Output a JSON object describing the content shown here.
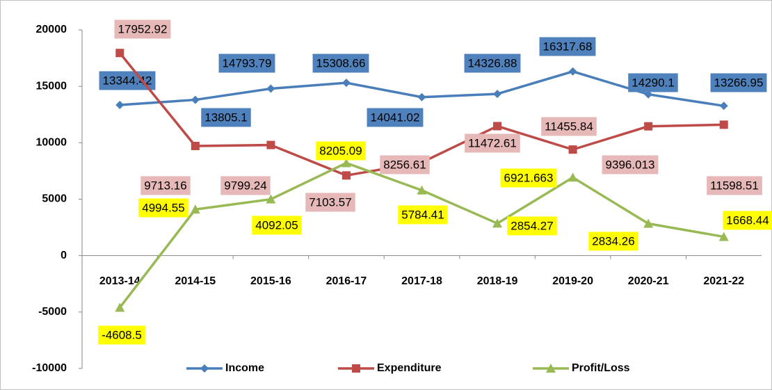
{
  "chart_data": {
    "type": "line",
    "categories": [
      "2013-14",
      "2014-15",
      "2015-16",
      "2016-17",
      "2017-18",
      "2018-19",
      "2019-20",
      "2020-21",
      "2021-22"
    ],
    "series": [
      {
        "name": "Income",
        "color": "#4a7ebb",
        "label_color": "#4f81bd",
        "marker": "diamond",
        "values": [
          13344.42,
          13805.1,
          14793.79,
          15308.66,
          14041.02,
          14326.88,
          16317.68,
          14290.1,
          13266.95
        ]
      },
      {
        "name": "Expenditure",
        "color": "#be4b48",
        "label_color": "#e6b8b7",
        "marker": "square",
        "values": [
          17952.92,
          9713.16,
          9799.24,
          7103.57,
          8256.61,
          11472.61,
          9396.013,
          11455.84,
          11598.51
        ]
      },
      {
        "name": "Profit/Loss",
        "color": "#98b954",
        "label_color": "#ffff00",
        "marker": "triangle",
        "values": [
          -4608.5,
          4092.05,
          4994.55,
          8205.09,
          5784.41,
          2854.27,
          6921.663,
          2834.26,
          1668.44
        ],
        "value_labels": [
          "-4608.5",
          "4092.05",
          "4994.55",
          "8205.09",
          "5784.41",
          "2854.27",
          "6921.663",
          "2834.26",
          "1668.44"
        ]
      }
    ],
    "ylim": [
      -10000,
      20000
    ],
    "yticks": [
      -10000,
      -5000,
      0,
      5000,
      10000,
      15000,
      20000
    ],
    "grid": false,
    "legend": "bottom"
  }
}
